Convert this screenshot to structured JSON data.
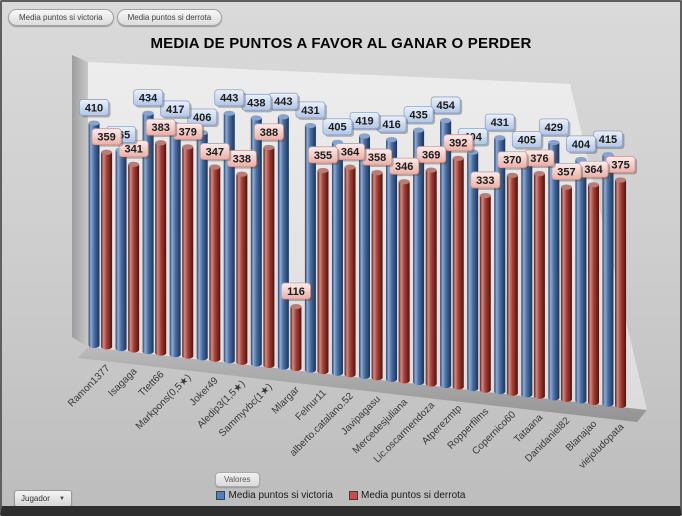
{
  "title": "MEDIA DE PUNTOS A FAVOR AL GANAR O PERDER",
  "filters": [
    {
      "label": "Media puntos si victoria"
    },
    {
      "label": "Media puntos si derrota"
    }
  ],
  "controls": {
    "values_label": "Valores",
    "player_dropdown_label": "Jugador"
  },
  "legend": [
    {
      "label": "Media puntos si victoria",
      "color": "#4f81bd"
    },
    {
      "label": "Media puntos si derrota",
      "color": "#c0504d"
    }
  ],
  "colors": {
    "victoria_bar": "#4f81bd",
    "derrota_bar": "#c0504d",
    "victoria_label_bg": "#c3d3ec",
    "derrota_label_bg": "#f0b8b1"
  },
  "chart_data": {
    "type": "bar",
    "style": "3d-cylinder",
    "title": "MEDIA DE PUNTOS A FAVOR AL GANAR O PERDER",
    "xlabel": "Jugador",
    "ylabel": "Valores",
    "grid": false,
    "legend_position": "bottom",
    "categories": [
      "Ramon1377",
      "Isagaga",
      "Ttett66",
      "Markpons(0,5★)",
      "Joker49",
      "Aledip3(1,5★)",
      "Sammyvbc(1★)",
      "Mlargar",
      "Felnur11",
      "alberto.catalano.52",
      "Javipagasu",
      "Mercedesjuliana",
      "Lic.oscarmendoza",
      "Atperezmtp",
      "Ropperfilms",
      "Copernico60",
      "Tataana",
      "Danidaniel82",
      "Blanajao",
      "viejoludopata"
    ],
    "series": [
      {
        "name": "Media puntos si victoria",
        "color": "#4f81bd",
        "values": [
          410,
          365,
          434,
          417,
          406,
          443,
          438,
          443,
          431,
          405,
          419,
          416,
          435,
          454,
          404,
          431,
          405,
          429,
          404,
          415
        ]
      },
      {
        "name": "Media puntos si derrota",
        "color": "#c0504d",
        "values": [
          359,
          341,
          383,
          379,
          347,
          338,
          388,
          116,
          355,
          364,
          358,
          346,
          369,
          392,
          333,
          370,
          376,
          357,
          364,
          375
        ]
      }
    ]
  }
}
